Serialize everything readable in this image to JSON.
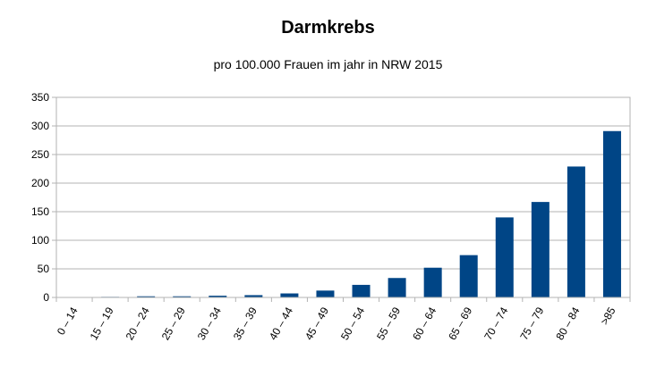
{
  "chart_data": {
    "type": "bar",
    "title": "Darmkrebs",
    "subtitle": "pro 100.000 Frauen im jahr in NRW 2015",
    "xlabel": "",
    "ylabel": "",
    "categories": [
      "0 – 14",
      "15 – 19",
      "20 – 24",
      "25 – 29",
      "30 – 34",
      "35 – 39",
      "40 – 44",
      "45 – 49",
      "50 – 54",
      "55 – 59",
      "60 – 64",
      "65 – 69",
      "70 – 74",
      "75 – 79",
      "80 – 84",
      ">85"
    ],
    "values": [
      0,
      1,
      2,
      2,
      3,
      4,
      7,
      12,
      22,
      34,
      52,
      74,
      140,
      167,
      229,
      291
    ],
    "ylim": [
      0,
      350
    ],
    "yticks": [
      0,
      50,
      100,
      150,
      200,
      250,
      300,
      350
    ],
    "grid": true,
    "bar_color": "#004586"
  }
}
